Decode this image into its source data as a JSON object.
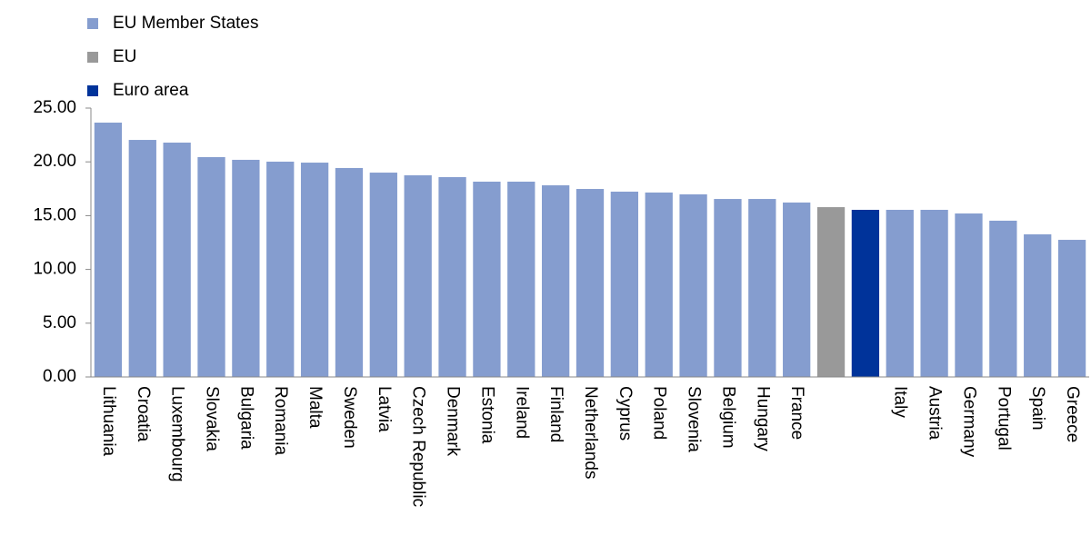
{
  "chart_data": {
    "type": "bar",
    "categories": [
      "Lithuania",
      "Croatia",
      "Luxembourg",
      "Slovakia",
      "Bulgaria",
      "Romania",
      "Malta",
      "Sweden",
      "Latvia",
      "Czech Republic",
      "Denmark",
      "Estonia",
      "Ireland",
      "Finland",
      "Netherlands",
      "Cyprus",
      "Poland",
      "Slovenia",
      "Belgium",
      "Hungary",
      "France",
      null,
      null,
      "Italy",
      "Austria",
      "Germany",
      "Portugal",
      "Spain",
      "Greece"
    ],
    "series": [
      {
        "name": "EU Member States",
        "color": "#859dcf",
        "values": [
          23.65,
          22.04,
          21.79,
          20.44,
          20.19,
          20.02,
          19.93,
          19.43,
          19.0,
          18.75,
          18.58,
          18.16,
          18.16,
          17.82,
          17.48,
          17.23,
          17.15,
          16.98,
          16.55,
          16.55,
          16.22,
          null,
          null,
          15.54,
          15.54,
          15.2,
          14.53,
          13.26,
          12.75
        ]
      },
      {
        "name": "EU",
        "color": "#999999",
        "values": [
          null,
          null,
          null,
          null,
          null,
          null,
          null,
          null,
          null,
          null,
          null,
          null,
          null,
          null,
          null,
          null,
          null,
          null,
          null,
          null,
          null,
          15.79,
          null,
          null,
          null,
          null,
          null,
          null,
          null
        ]
      },
      {
        "name": "Euro area",
        "color": "#00339a",
        "values": [
          null,
          null,
          null,
          null,
          null,
          null,
          null,
          null,
          null,
          null,
          null,
          null,
          null,
          null,
          null,
          null,
          null,
          null,
          null,
          null,
          null,
          null,
          15.54,
          null,
          null,
          null,
          null,
          null,
          null
        ]
      }
    ],
    "ylim": [
      0,
      25
    ],
    "yticks": [
      {
        "value": 0,
        "label": "0.00"
      },
      {
        "value": 5,
        "label": "5.00"
      },
      {
        "value": 10,
        "label": "10.00"
      },
      {
        "value": 15,
        "label": "15.00"
      },
      {
        "value": 20,
        "label": "20.00"
      },
      {
        "value": 25,
        "label": "25.00"
      }
    ],
    "legend": "top-left"
  }
}
